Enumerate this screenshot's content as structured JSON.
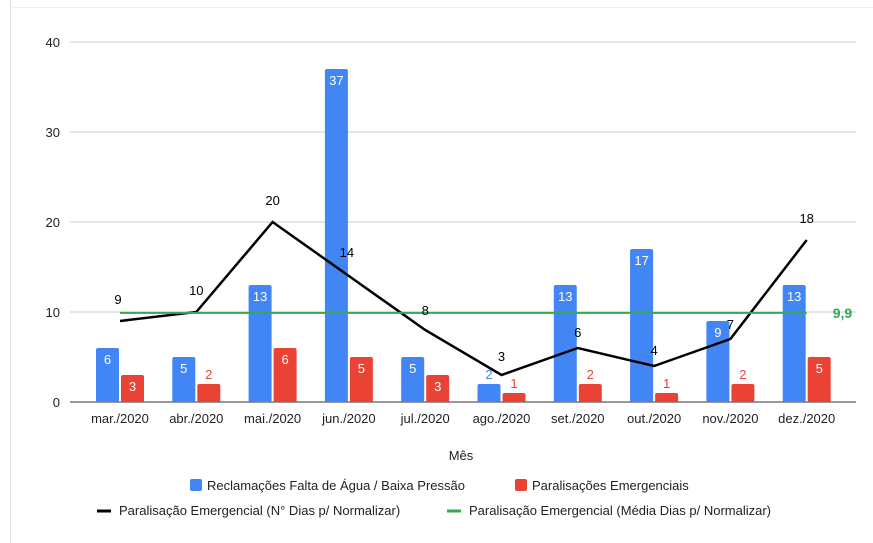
{
  "chart_data": {
    "type": "bar",
    "title": "",
    "xlabel": "Mês",
    "ylabel": "",
    "ylim": [
      0,
      40
    ],
    "yticks": [
      "0",
      "10",
      "20",
      "30",
      "40"
    ],
    "grid": true,
    "legend_position": "bottom",
    "categories": [
      "mar./2020",
      "abr./2020",
      "mai./2020",
      "jun./2020",
      "jul./2020",
      "ago./2020",
      "set./2020",
      "out./2020",
      "nov./2020",
      "dez./2020"
    ],
    "series": [
      {
        "name": "Reclamações Falta de Água / Baixa Pressão",
        "kind": "bar",
        "color": "#4285f4",
        "values": [
          6,
          5,
          13,
          37,
          5,
          2,
          13,
          17,
          9,
          13
        ]
      },
      {
        "name": "Paralisações Emergenciais",
        "kind": "bar",
        "color": "#ea4335",
        "values": [
          3,
          2,
          6,
          5,
          3,
          1,
          2,
          1,
          2,
          5
        ]
      },
      {
        "name": "Paralisação Emergencial (N° Dias p/ Normalizar)",
        "kind": "line",
        "color": "#000000",
        "values": [
          9,
          10,
          20,
          14,
          8,
          3,
          6,
          4,
          7,
          18
        ]
      },
      {
        "name": "Paralisação Emergencial (Média Dias p/ Normalizar)",
        "kind": "line",
        "color": "#34a853",
        "values": [
          9.9,
          9.9,
          9.9,
          9.9,
          9.9,
          9.9,
          9.9,
          9.9,
          9.9,
          9.9
        ],
        "end_label": "9,9"
      }
    ]
  }
}
